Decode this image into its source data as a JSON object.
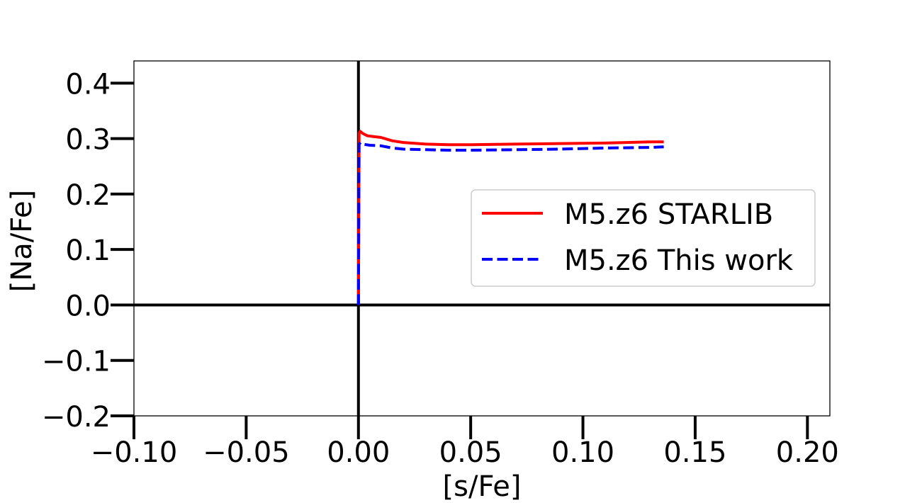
{
  "chart_data": {
    "type": "line",
    "title": "",
    "xlabel": "[s/Fe]",
    "ylabel": "[Na/Fe]",
    "xlim": [
      -0.1,
      0.21
    ],
    "ylim": [
      -0.2,
      0.44
    ],
    "xticks": [
      -0.1,
      -0.05,
      0.0,
      0.05,
      0.1,
      0.15,
      0.2
    ],
    "xtick_labels": [
      "−0.10",
      "−0.05",
      "0.00",
      "0.05",
      "0.10",
      "0.15",
      "0.20"
    ],
    "yticks": [
      -0.2,
      -0.1,
      0.0,
      0.1,
      0.2,
      0.3,
      0.4
    ],
    "ytick_labels": [
      "−0.2",
      "−0.1",
      "0.0",
      "0.1",
      "0.2",
      "0.3",
      "0.4"
    ],
    "reference_lines": {
      "x": 0.0,
      "y": 0.0
    },
    "grid": false,
    "legend_position": "right",
    "series": [
      {
        "name": "M5.z6 STARLIB",
        "color": "#ff0000",
        "style": "solid",
        "x": [
          0.0,
          0.0003,
          0.0008,
          0.002,
          0.004,
          0.006,
          0.01,
          0.015,
          0.02,
          0.03,
          0.04,
          0.05,
          0.07,
          0.09,
          0.11,
          0.13,
          0.136
        ],
        "y": [
          0.0,
          0.31,
          0.313,
          0.309,
          0.305,
          0.304,
          0.302,
          0.296,
          0.293,
          0.29,
          0.289,
          0.289,
          0.29,
          0.291,
          0.292,
          0.294,
          0.294
        ]
      },
      {
        "name": "M5.z6 This work",
        "color": "#0000ff",
        "style": "dashed",
        "x": [
          0.0,
          0.0003,
          0.001,
          0.002,
          0.005,
          0.01,
          0.015,
          0.02,
          0.03,
          0.04,
          0.05,
          0.07,
          0.09,
          0.11,
          0.13,
          0.136
        ],
        "y": [
          0.0,
          0.29,
          0.293,
          0.29,
          0.288,
          0.287,
          0.283,
          0.281,
          0.28,
          0.279,
          0.279,
          0.28,
          0.281,
          0.283,
          0.284,
          0.285
        ]
      }
    ]
  }
}
